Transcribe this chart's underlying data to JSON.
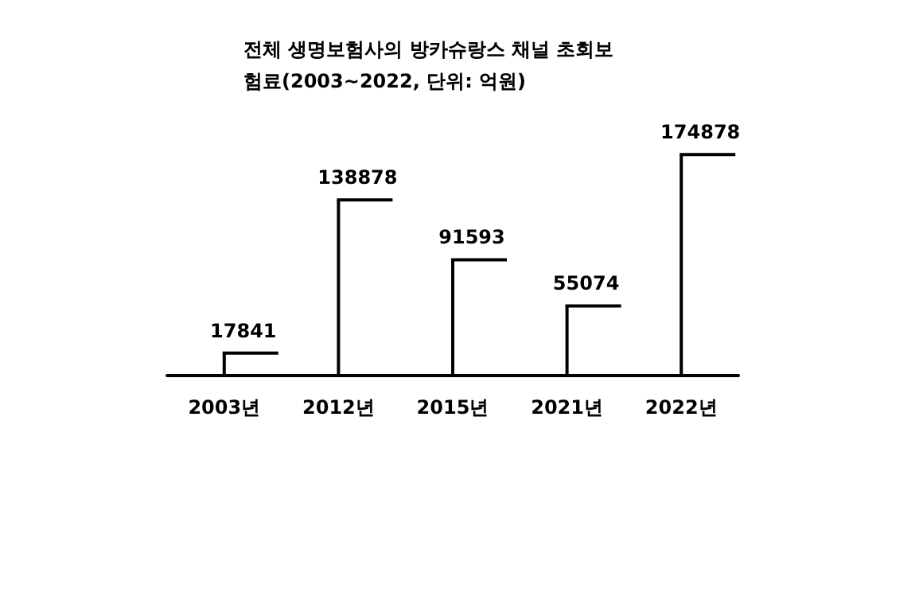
{
  "chart_data": {
    "type": "bar",
    "title": "전체 생명보험사의 방카슈랑스 채널 초회보",
    "subtitle": "험료(2003~2022, 단위: 억원)",
    "categories": [
      "2003년",
      "2012년",
      "2015년",
      "2021년",
      "2022년"
    ],
    "values": [
      17841,
      138878,
      91593,
      55074,
      174878
    ],
    "color": "#000000",
    "data_labels": true,
    "grid": false
  }
}
